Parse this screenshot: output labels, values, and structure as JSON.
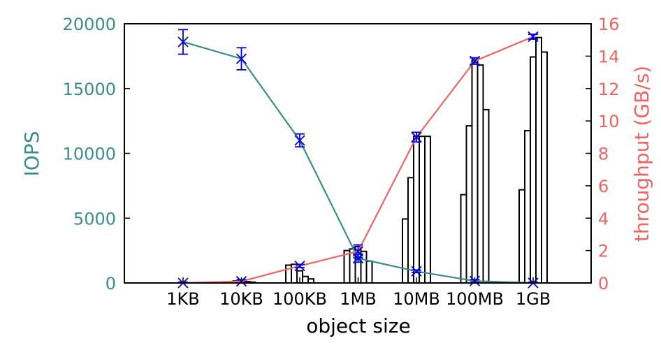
{
  "chart_data": {
    "type": "bar",
    "xlabel": "object size",
    "ylabel_left": "IOPS",
    "ylabel_right": "throughput (GB/s)",
    "categories": [
      "1KB",
      "10KB",
      "100KB",
      "1MB",
      "10MB",
      "100MB",
      "1GB"
    ],
    "ylim_left": [
      0,
      20000
    ],
    "yticks_left": [
      0,
      5000,
      10000,
      15000,
      20000
    ],
    "ylim_right": [
      0,
      16
    ],
    "yticks_right": [
      0,
      2,
      4,
      6,
      8,
      10,
      12,
      14,
      16
    ],
    "grid": false,
    "bars_axis": "right",
    "bar_groups": [
      [
        0.0,
        0.0,
        0.0,
        0.0,
        0.0
      ],
      [
        0.05,
        0.12,
        0.1,
        0.08,
        0.05
      ],
      [
        1.1,
        1.15,
        0.75,
        0.4,
        0.25
      ],
      [
        2.0,
        2.1,
        2.25,
        1.95,
        1.35
      ],
      [
        3.95,
        6.5,
        9.05,
        9.05,
        9.05
      ],
      [
        5.45,
        9.7,
        13.75,
        13.45,
        10.7
      ],
      [
        5.75,
        9.4,
        13.95,
        15.15,
        14.25
      ]
    ],
    "series": [
      {
        "name": "IOPS",
        "axis": "left",
        "color": "#3d8c8c",
        "values": [
          18600,
          17300,
          11000,
          1900,
          900,
          150,
          0
        ],
        "errors": [
          950,
          850,
          500,
          300,
          100,
          100,
          50
        ]
      },
      {
        "name": "throughput",
        "axis": "right",
        "color": "#f06464",
        "values": [
          0.0,
          0.1,
          1.05,
          1.95,
          9.0,
          13.7,
          15.2
        ],
        "errors": [
          0.05,
          0.1,
          0.1,
          0.4,
          0.3,
          0.2,
          0.15
        ]
      }
    ],
    "marker_color": "#0000dd",
    "left_axis_color": "#3d8c8c",
    "right_axis_color": "#f06464"
  }
}
